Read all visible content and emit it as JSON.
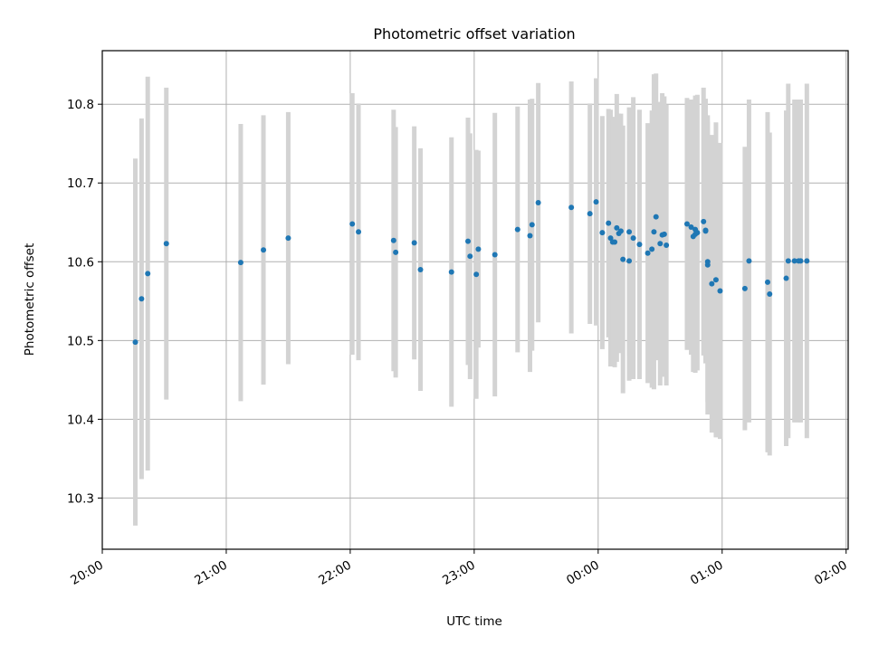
{
  "chart_data": {
    "type": "scatter",
    "title": "Photometric offset variation",
    "xlabel": "UTC time",
    "ylabel": "Photometric offset",
    "x_tick_labels": [
      "20:00",
      "21:00",
      "22:00",
      "23:00",
      "00:00",
      "01:00",
      "02:00"
    ],
    "y_tick_labels": [
      "10.3",
      "10.4",
      "10.5",
      "10.6",
      "10.7",
      "10.8"
    ],
    "y_ticks": [
      10.3,
      10.4,
      10.5,
      10.6,
      10.7,
      10.8
    ],
    "xlim": [
      "20:00",
      "02:01"
    ],
    "ylim": [
      10.235,
      10.868
    ],
    "grid": true,
    "colors": {
      "point": "#1f77b4",
      "errorbar": "#d3d3d3",
      "grid": "#b0b0b0"
    },
    "series": [
      {
        "x": [
          "20:16",
          "20:19",
          "20:22",
          "20:31",
          "21:07",
          "21:18",
          "21:30",
          "22:01",
          "22:04",
          "22:21",
          "22:22",
          "22:31",
          "22:34",
          "22:49",
          "22:57",
          "22:58",
          "23:01",
          "23:02",
          "23:10",
          "23:21",
          "23:27",
          "23:28",
          "23:31",
          "23:47",
          "23:56",
          "23:59",
          "00:02",
          "00:05",
          "00:06",
          "00:07",
          "00:08",
          "00:09",
          "00:10",
          "00:11",
          "00:12",
          "00:15",
          "00:15",
          "00:17",
          "00:20",
          "00:24",
          "00:26",
          "00:27",
          "00:28",
          "00:30",
          "00:31",
          "00:32",
          "00:33",
          "00:43",
          "00:45",
          "00:46",
          "00:47",
          "00:47",
          "00:48",
          "00:51",
          "00:52",
          "00:52",
          "00:53",
          "00:53",
          "00:55",
          "00:57",
          "00:59",
          "01:11",
          "01:13",
          "01:22",
          "01:23",
          "01:31",
          "01:32",
          "01:35",
          "01:37",
          "01:38",
          "01:41"
        ],
        "y": [
          10.498,
          10.553,
          10.585,
          10.623,
          10.599,
          10.615,
          10.63,
          10.648,
          10.638,
          10.627,
          10.612,
          10.624,
          10.59,
          10.587,
          10.626,
          10.607,
          10.584,
          10.616,
          10.609,
          10.641,
          10.633,
          10.647,
          10.675,
          10.669,
          10.661,
          10.676,
          10.637,
          10.649,
          10.63,
          10.625,
          10.625,
          10.643,
          10.636,
          10.639,
          10.603,
          10.638,
          10.601,
          10.63,
          10.622,
          10.611,
          10.616,
          10.638,
          10.657,
          10.623,
          10.634,
          10.635,
          10.621,
          10.648,
          10.644,
          10.632,
          10.641,
          10.635,
          10.637,
          10.651,
          10.64,
          10.639,
          10.6,
          10.596,
          10.572,
          10.577,
          10.563,
          10.566,
          10.601,
          10.574,
          10.559,
          10.579,
          10.601,
          10.601,
          10.601,
          10.601,
          10.601
        ],
        "yerr": [
          0.233,
          0.229,
          0.25,
          0.198,
          0.176,
          0.171,
          0.16,
          0.166,
          0.163,
          0.166,
          0.159,
          0.148,
          0.154,
          0.171,
          0.157,
          0.156,
          0.158,
          0.125,
          0.18,
          0.156,
          0.173,
          0.16,
          0.152,
          0.16,
          0.14,
          0.157,
          0.148,
          0.145,
          0.163,
          0.155,
          0.159,
          0.17,
          0.152,
          0.149,
          0.17,
          0.158,
          0.152,
          0.179,
          0.171,
          0.165,
          0.176,
          0.2,
          0.182,
          0.18,
          0.18,
          0.175,
          0.178,
          0.16,
          0.162,
          0.172,
          0.167,
          0.176,
          0.175,
          0.17,
          0.165,
          0.168,
          0.178,
          0.19,
          0.189,
          0.2,
          0.188,
          0.18,
          0.205,
          0.216,
          0.205,
          0.213,
          0.225,
          0.205,
          0.205,
          0.205,
          0.225
        ]
      }
    ]
  }
}
